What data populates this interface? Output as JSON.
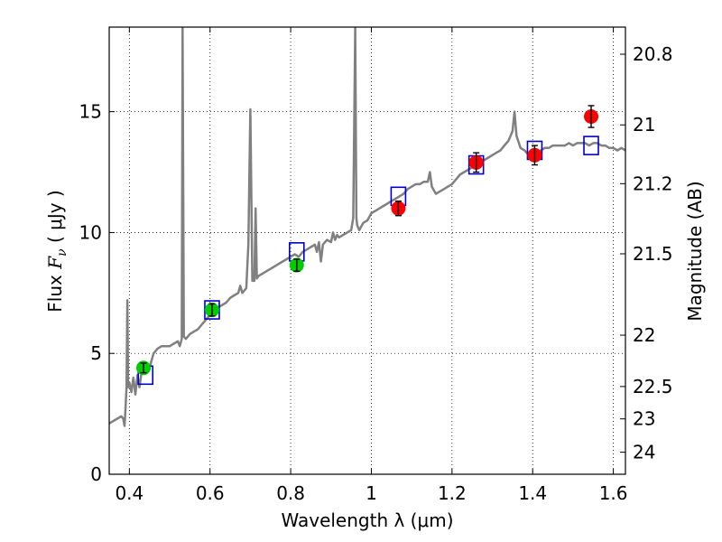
{
  "chart_data": {
    "type": "scatter",
    "xlabel": "Wavelength  λ (μm)",
    "ylabel_prefix": "Flux  ",
    "ylabel_symbol": "F",
    "ylabel_sub": "ν",
    "ylabel_suffix": "  ( μJy )",
    "y2label": "Magnitude (AB)",
    "xlim": [
      0.35,
      1.63
    ],
    "ylim": [
      0,
      18.5
    ],
    "grid": true,
    "xticks": [
      {
        "value": 0.4,
        "label": "0.4"
      },
      {
        "value": 0.6,
        "label": "0.6"
      },
      {
        "value": 0.8,
        "label": "0.8"
      },
      {
        "value": 1.0,
        "label": "1"
      },
      {
        "value": 1.2,
        "label": "1.2"
      },
      {
        "value": 1.4,
        "label": "1.4"
      },
      {
        "value": 1.6,
        "label": "1.6"
      }
    ],
    "yticks": [
      {
        "value": 0,
        "label": "0"
      },
      {
        "value": 5,
        "label": "5"
      },
      {
        "value": 10,
        "label": "10"
      },
      {
        "value": 15,
        "label": "15"
      }
    ],
    "y2ticks": [
      {
        "value": 20.8,
        "label": "20.8"
      },
      {
        "value": 21.0,
        "label": "21"
      },
      {
        "value": 21.2,
        "label": "21.2"
      },
      {
        "value": 21.5,
        "label": "21.5"
      },
      {
        "value": 22.0,
        "label": "22"
      },
      {
        "value": 22.5,
        "label": "22.5"
      },
      {
        "value": 23.0,
        "label": "23"
      },
      {
        "value": 24.0,
        "label": "24"
      }
    ],
    "model_spectrum": {
      "color": "#808080",
      "points": [
        [
          0.35,
          2.1
        ],
        [
          0.36,
          2.2
        ],
        [
          0.37,
          2.3
        ],
        [
          0.38,
          2.4
        ],
        [
          0.385,
          2.3
        ],
        [
          0.388,
          2.0
        ],
        [
          0.39,
          2.6
        ],
        [
          0.393,
          3.6
        ],
        [
          0.395,
          7.2
        ],
        [
          0.397,
          3.6
        ],
        [
          0.4,
          3.8
        ],
        [
          0.405,
          3.4
        ],
        [
          0.41,
          4.0
        ],
        [
          0.415,
          3.3
        ],
        [
          0.42,
          4.1
        ],
        [
          0.425,
          3.6
        ],
        [
          0.43,
          4.2
        ],
        [
          0.44,
          4.3
        ],
        [
          0.45,
          4.4
        ],
        [
          0.455,
          4.7
        ],
        [
          0.46,
          5.0
        ],
        [
          0.47,
          5.2
        ],
        [
          0.48,
          5.3
        ],
        [
          0.49,
          5.3
        ],
        [
          0.5,
          5.3
        ],
        [
          0.51,
          5.4
        ],
        [
          0.52,
          5.5
        ],
        [
          0.525,
          5.3
        ],
        [
          0.53,
          5.6
        ],
        [
          0.532,
          18.5
        ],
        [
          0.535,
          5.7
        ],
        [
          0.54,
          5.6
        ],
        [
          0.55,
          5.8
        ],
        [
          0.56,
          5.9
        ],
        [
          0.57,
          6.0
        ],
        [
          0.58,
          6.2
        ],
        [
          0.59,
          6.4
        ],
        [
          0.6,
          6.6
        ],
        [
          0.61,
          6.7
        ],
        [
          0.62,
          6.9
        ],
        [
          0.63,
          7.0
        ],
        [
          0.64,
          7.1
        ],
        [
          0.65,
          7.3
        ],
        [
          0.66,
          7.4
        ],
        [
          0.67,
          7.5
        ],
        [
          0.675,
          7.8
        ],
        [
          0.68,
          7.5
        ],
        [
          0.69,
          7.7
        ],
        [
          0.695,
          9.5
        ],
        [
          0.7,
          15.1
        ],
        [
          0.705,
          8.0
        ],
        [
          0.71,
          8.0
        ],
        [
          0.713,
          11.0
        ],
        [
          0.716,
          8.1
        ],
        [
          0.72,
          8.2
        ],
        [
          0.73,
          8.3
        ],
        [
          0.74,
          8.4
        ],
        [
          0.75,
          8.5
        ],
        [
          0.76,
          8.6
        ],
        [
          0.77,
          8.7
        ],
        [
          0.78,
          8.8
        ],
        [
          0.79,
          8.9
        ],
        [
          0.8,
          9.0
        ],
        [
          0.81,
          9.1
        ],
        [
          0.82,
          9.0
        ],
        [
          0.83,
          9.2
        ],
        [
          0.84,
          9.3
        ],
        [
          0.85,
          9.4
        ],
        [
          0.86,
          9.5
        ],
        [
          0.865,
          9.2
        ],
        [
          0.87,
          9.6
        ],
        [
          0.875,
          8.8
        ],
        [
          0.88,
          9.5
        ],
        [
          0.89,
          9.7
        ],
        [
          0.9,
          9.6
        ],
        [
          0.905,
          10.0
        ],
        [
          0.91,
          9.7
        ],
        [
          0.915,
          9.9
        ],
        [
          0.92,
          9.8
        ],
        [
          0.93,
          9.9
        ],
        [
          0.94,
          10.0
        ],
        [
          0.95,
          10.1
        ],
        [
          0.955,
          10.6
        ],
        [
          0.96,
          18.5
        ],
        [
          0.963,
          10.6
        ],
        [
          0.965,
          10.3
        ],
        [
          0.97,
          10.1
        ],
        [
          0.98,
          10.4
        ],
        [
          0.99,
          10.5
        ],
        [
          1.0,
          10.8
        ],
        [
          1.01,
          10.9
        ],
        [
          1.02,
          11.0
        ],
        [
          1.03,
          11.1
        ],
        [
          1.04,
          11.2
        ],
        [
          1.05,
          11.3
        ],
        [
          1.06,
          11.4
        ],
        [
          1.07,
          11.5
        ],
        [
          1.08,
          11.6
        ],
        [
          1.09,
          11.8
        ],
        [
          1.1,
          11.9
        ],
        [
          1.11,
          12.0
        ],
        [
          1.12,
          12.0
        ],
        [
          1.13,
          12.1
        ],
        [
          1.14,
          12.1
        ],
        [
          1.145,
          12.5
        ],
        [
          1.15,
          11.9
        ],
        [
          1.16,
          11.6
        ],
        [
          1.17,
          11.7
        ],
        [
          1.18,
          11.8
        ],
        [
          1.19,
          11.9
        ],
        [
          1.2,
          12.0
        ],
        [
          1.21,
          12.2
        ],
        [
          1.22,
          12.4
        ],
        [
          1.23,
          12.5
        ],
        [
          1.24,
          12.6
        ],
        [
          1.25,
          12.7
        ],
        [
          1.26,
          12.8
        ],
        [
          1.27,
          12.9
        ],
        [
          1.28,
          13.0
        ],
        [
          1.29,
          13.1
        ],
        [
          1.3,
          13.2
        ],
        [
          1.31,
          13.3
        ],
        [
          1.32,
          13.4
        ],
        [
          1.33,
          13.6
        ],
        [
          1.34,
          13.8
        ],
        [
          1.35,
          14.2
        ],
        [
          1.355,
          15.0
        ],
        [
          1.36,
          14.0
        ],
        [
          1.37,
          13.5
        ],
        [
          1.38,
          13.4
        ],
        [
          1.39,
          13.2
        ],
        [
          1.4,
          13.2
        ],
        [
          1.41,
          13.3
        ],
        [
          1.42,
          13.4
        ],
        [
          1.43,
          13.5
        ],
        [
          1.44,
          13.5
        ],
        [
          1.45,
          13.6
        ],
        [
          1.46,
          13.6
        ],
        [
          1.47,
          13.6
        ],
        [
          1.48,
          13.6
        ],
        [
          1.49,
          13.7
        ],
        [
          1.5,
          13.6
        ],
        [
          1.51,
          13.7
        ],
        [
          1.52,
          13.7
        ],
        [
          1.53,
          13.7
        ],
        [
          1.54,
          13.6
        ],
        [
          1.55,
          13.7
        ],
        [
          1.56,
          13.7
        ],
        [
          1.57,
          13.6
        ],
        [
          1.58,
          13.6
        ],
        [
          1.59,
          13.5
        ],
        [
          1.6,
          13.5
        ],
        [
          1.61,
          13.4
        ],
        [
          1.62,
          13.5
        ],
        [
          1.63,
          13.4
        ]
      ]
    },
    "model_boxes": {
      "color": "#0000cc",
      "points": [
        {
          "x": 0.44,
          "y": 4.1
        },
        {
          "x": 0.605,
          "y": 6.8
        },
        {
          "x": 0.815,
          "y": 9.2
        },
        {
          "x": 1.067,
          "y": 11.5
        },
        {
          "x": 1.26,
          "y": 12.8
        },
        {
          "x": 1.405,
          "y": 13.4
        },
        {
          "x": 1.545,
          "y": 13.6
        }
      ]
    },
    "series": [
      {
        "color": "#00cc00",
        "points": [
          {
            "x": 0.435,
            "y": 4.4,
            "err": 0.2
          },
          {
            "x": 0.605,
            "y": 6.8,
            "err": 0.25
          },
          {
            "x": 0.815,
            "y": 8.65,
            "err": 0.25
          }
        ]
      },
      {
        "color": "#ff0000",
        "points": [
          {
            "x": 1.067,
            "y": 11.0,
            "err": 0.3
          },
          {
            "x": 1.26,
            "y": 12.9,
            "err": 0.4
          },
          {
            "x": 1.405,
            "y": 13.2,
            "err": 0.4
          },
          {
            "x": 1.545,
            "y": 14.8,
            "err": 0.45
          }
        ]
      }
    ]
  }
}
